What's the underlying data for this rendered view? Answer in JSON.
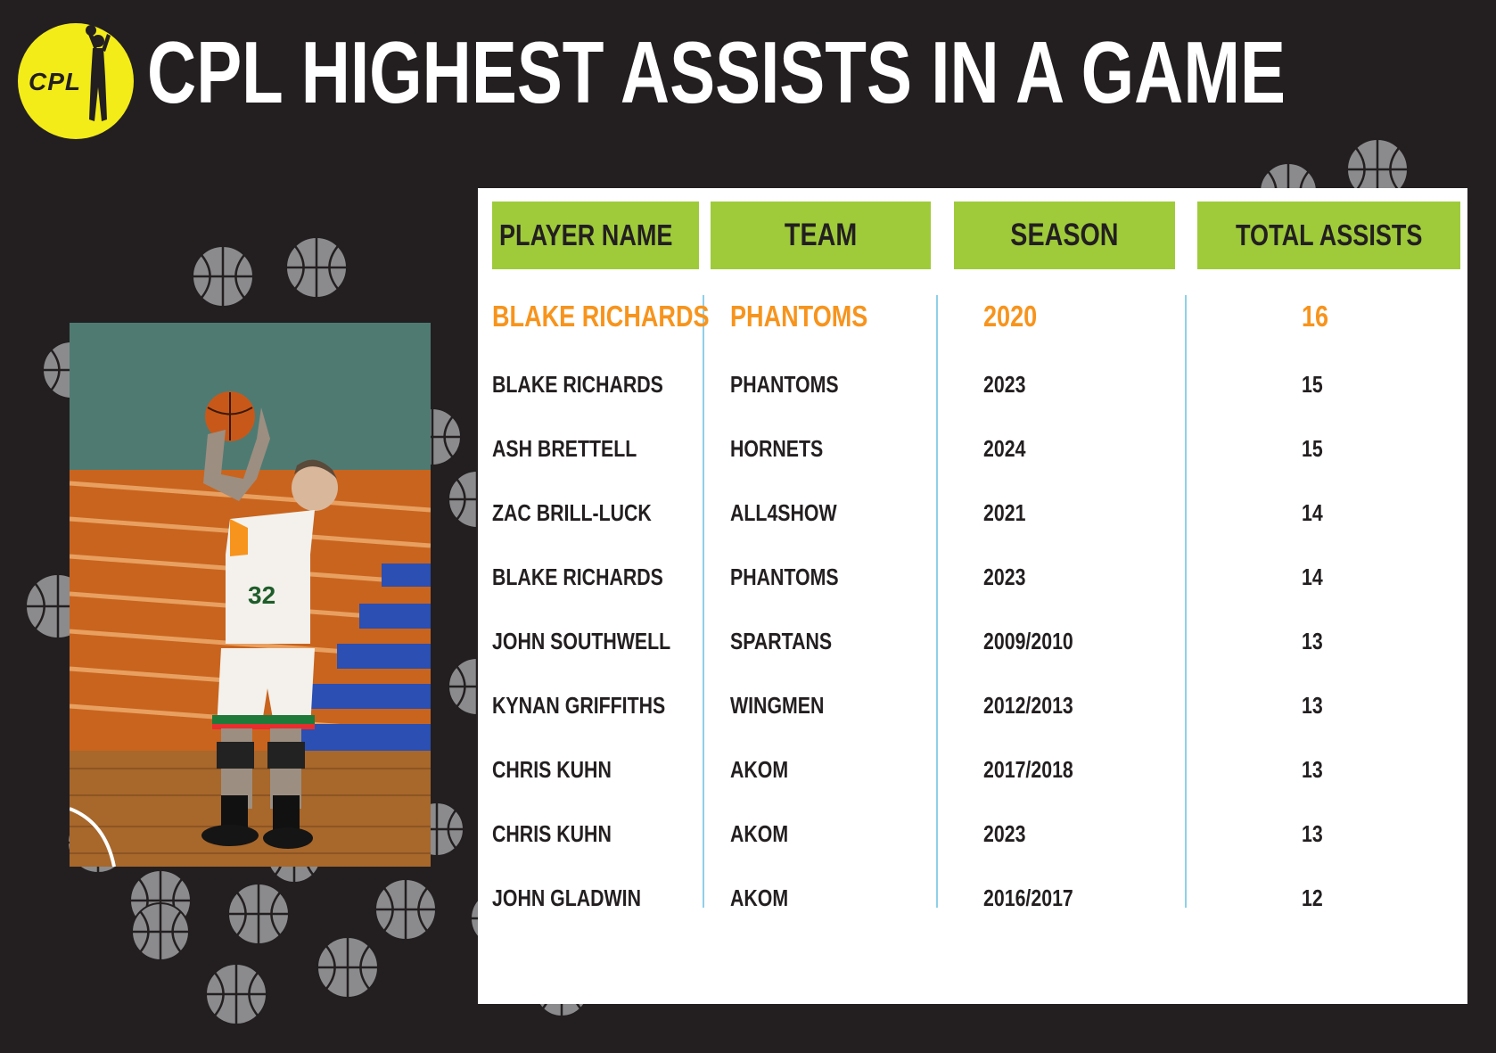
{
  "header": {
    "logo_text": "CPL",
    "title": "CPL HIGHEST ASSISTS IN A GAME"
  },
  "colors": {
    "background": "#231f20",
    "logo_yellow": "#f3ec19",
    "header_green": "#9fcb3b",
    "highlight_orange": "#f7941d",
    "divider_blue": "#8fd0e8"
  },
  "table": {
    "columns": [
      "PLAYER NAME",
      "TEAM",
      "SEASON",
      "TOTAL ASSISTS"
    ],
    "rows": [
      {
        "player": "BLAKE RICHARDS",
        "team": "PHANTOMS",
        "season": "2020",
        "assists": "16"
      },
      {
        "player": "BLAKE RICHARDS",
        "team": "PHANTOMS",
        "season": "2023",
        "assists": "15"
      },
      {
        "player": "ASH BRETTELL",
        "team": "HORNETS",
        "season": "2024",
        "assists": "15"
      },
      {
        "player": "ZAC BRILL-LUCK",
        "team": "ALL4SHOW",
        "season": "2021",
        "assists": "14"
      },
      {
        "player": "BLAKE RICHARDS",
        "team": "PHANTOMS",
        "season": "2023",
        "assists": "14"
      },
      {
        "player": "JOHN SOUTHWELL",
        "team": "SPARTANS",
        "season": "2009/2010",
        "assists": "13"
      },
      {
        "player": "KYNAN GRIFFITHS",
        "team": "WINGMEN",
        "season": "2012/2013",
        "assists": "13"
      },
      {
        "player": "CHRIS KUHN",
        "team": "AKOM",
        "season": "2017/2018",
        "assists": "13"
      },
      {
        "player": "CHRIS KUHN",
        "team": "AKOM",
        "season": "2023",
        "assists": "13"
      },
      {
        "player": "JOHN GLADWIN",
        "team": "AKOM",
        "season": "2016/2017",
        "assists": "12"
      }
    ]
  },
  "photo": {
    "jersey_number": "32"
  }
}
